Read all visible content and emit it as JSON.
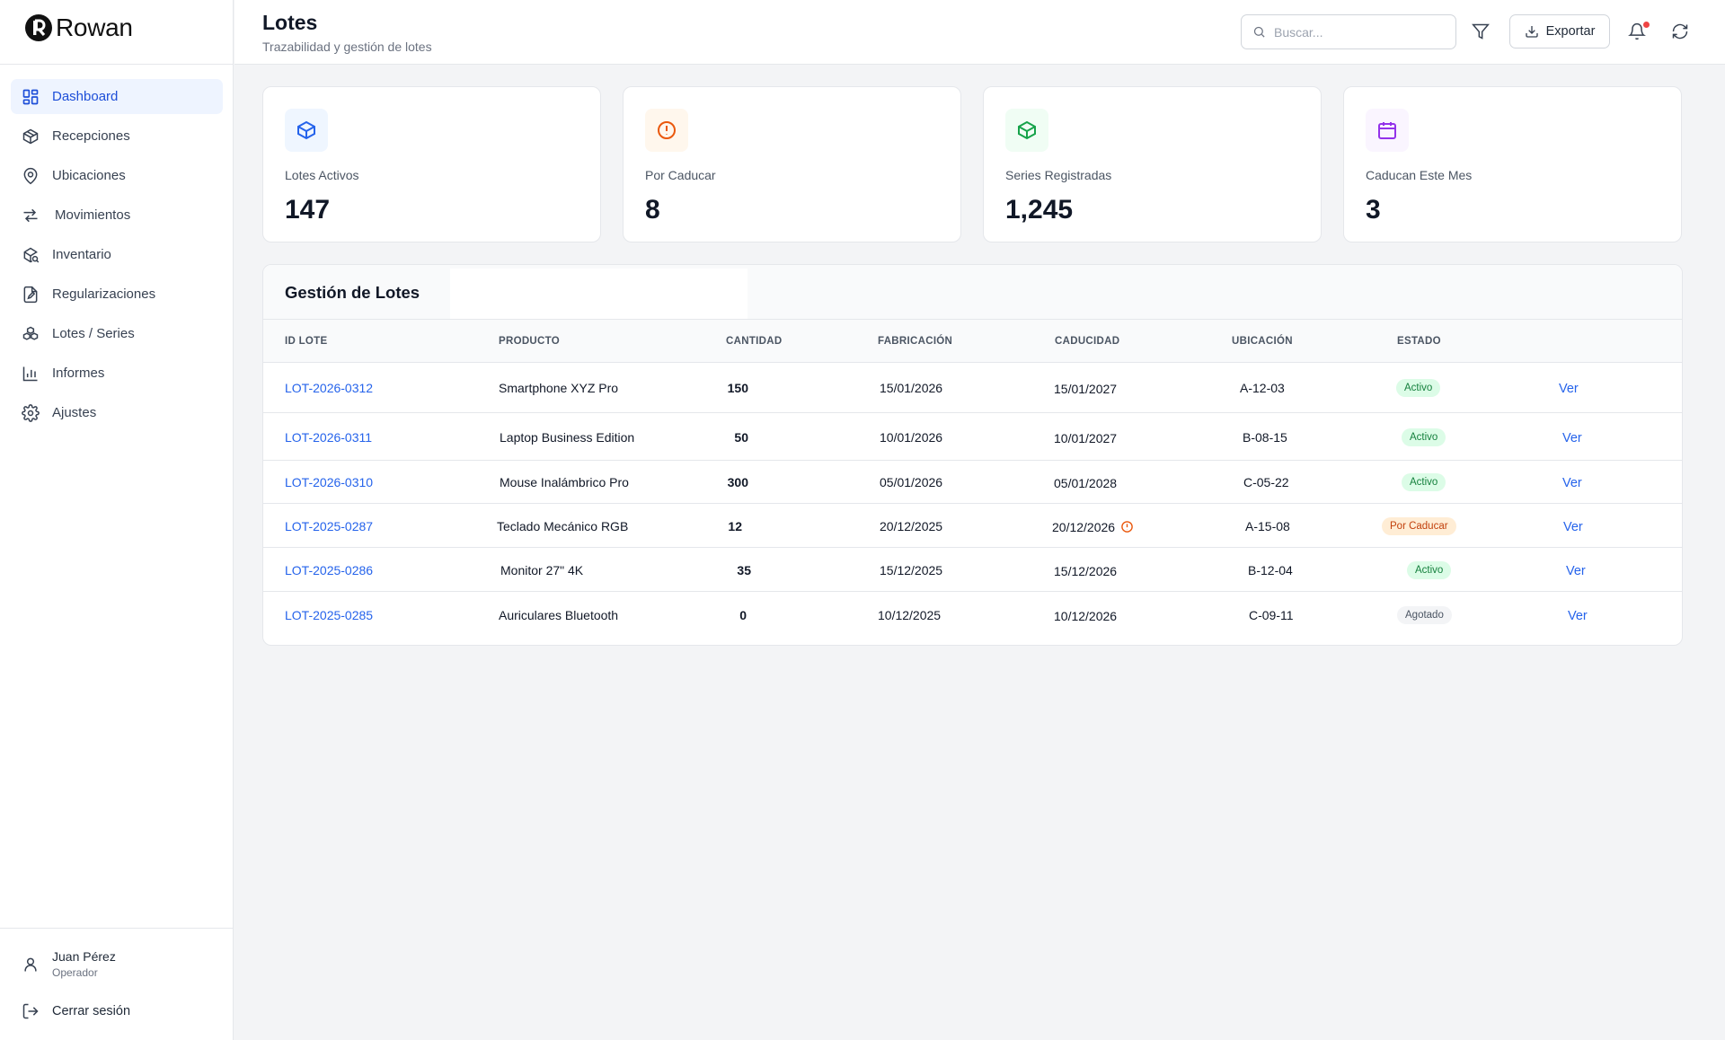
{
  "app": {
    "name": "Rowan"
  },
  "sidebar": {
    "items": [
      {
        "label": "Dashboard",
        "icon": "dashboard-icon",
        "active": true
      },
      {
        "label": "Recepciones",
        "icon": "package-icon"
      },
      {
        "label": "Ubicaciones",
        "icon": "map-pin-icon"
      },
      {
        "label": "Movimientos",
        "icon": "arrows-exchange-icon"
      },
      {
        "label": "Inventario",
        "icon": "inventory-search-icon"
      },
      {
        "label": "Regularizaciones",
        "icon": "file-edit-icon"
      },
      {
        "label": "Lotes / Series",
        "icon": "boxes-icon"
      },
      {
        "label": "Informes",
        "icon": "bar-chart-icon"
      },
      {
        "label": "Ajustes",
        "icon": "gear-icon"
      }
    ],
    "user": {
      "name": "Juan Pérez",
      "role": "Operador"
    },
    "logout_label": "Cerrar sesión"
  },
  "header": {
    "title": "Lotes",
    "subtitle": "Trazabilidad y gestión de lotes",
    "search_placeholder": "Buscar...",
    "export_label": "Exportar"
  },
  "stats": [
    {
      "label": "Lotes Activos",
      "value": "147",
      "icon": "box-icon",
      "color": "#2563eb",
      "bg": "#eff6ff"
    },
    {
      "label": "Por Caducar",
      "value": "8",
      "icon": "alert-circle-icon",
      "color": "#ea580c",
      "bg": "#fff7ed"
    },
    {
      "label": "Series Registradas",
      "value": "1,245",
      "icon": "box-icon",
      "color": "#16a34a",
      "bg": "#f0fdf4"
    },
    {
      "label": "Caducan Este Mes",
      "value": "3",
      "icon": "calendar-icon",
      "color": "#9333ea",
      "bg": "#faf5ff"
    }
  ],
  "table": {
    "title": "Gestión de Lotes",
    "columns": [
      "ID LOTE",
      "PRODUCTO",
      "CANTIDAD",
      "FABRICACIÓN",
      "CADUCIDAD",
      "UBICACIÓN",
      "ESTADO"
    ],
    "rows": [
      {
        "id": "LOT-2026-0312",
        "product": "Smartphone XYZ Pro",
        "qty": "150",
        "fab": "15/01/2026",
        "cad": "15/01/2027",
        "loc": "A-12-03",
        "status": "Activo",
        "status_kind": "activo",
        "action": "Ver",
        "warn": false
      },
      {
        "id": "LOT-2026-0311",
        "product": "Laptop Business Edition",
        "qty": "50",
        "fab": "10/01/2026",
        "cad": "10/01/2027",
        "loc": "B-08-15",
        "status": "Activo",
        "status_kind": "activo",
        "action": "Ver",
        "warn": false
      },
      {
        "id": "LOT-2026-0310",
        "product": "Mouse Inalámbrico Pro",
        "qty": "300",
        "fab": "05/01/2026",
        "cad": "05/01/2028",
        "loc": "C-05-22",
        "status": "Activo",
        "status_kind": "activo",
        "action": "Ver",
        "warn": false
      },
      {
        "id": "LOT-2025-0287",
        "product": "Teclado Mecánico RGB",
        "qty": "12",
        "fab": "20/12/2025",
        "cad": "20/12/2026",
        "loc": "A-15-08",
        "status": "Por Caducar",
        "status_kind": "porcad",
        "action": "Ver",
        "warn": true
      },
      {
        "id": "LOT-2025-0286",
        "product": "Monitor 27\" 4K",
        "qty": "35",
        "fab": "15/12/2025",
        "cad": "15/12/2026",
        "loc": "B-12-04",
        "status": "Activo",
        "status_kind": "activo",
        "action": "Ver",
        "warn": false
      },
      {
        "id": "LOT-2025-0285",
        "product": "Auriculares Bluetooth",
        "qty": "0",
        "fab": "10/12/2025",
        "cad": "10/12/2026",
        "loc": "C-09-11",
        "status": "Agotado",
        "status_kind": "agotado",
        "action": "Ver",
        "warn": false
      }
    ]
  }
}
